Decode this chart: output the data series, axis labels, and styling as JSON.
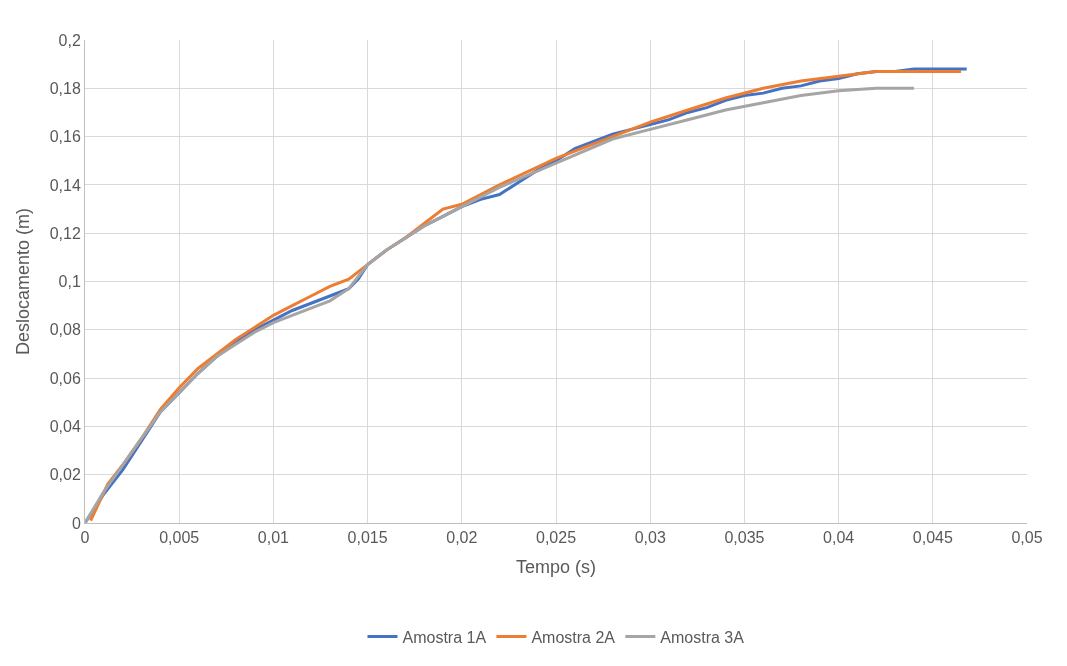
{
  "chart_data": {
    "type": "line",
    "xlabel": "Tempo (s)",
    "ylabel": "Deslocamento (m)",
    "xlim": [
      0,
      0.05
    ],
    "xticks": [
      {
        "value": 0,
        "label": "0"
      },
      {
        "value": 0.005,
        "label": "0,005"
      },
      {
        "value": 0.01,
        "label": "0,01"
      },
      {
        "value": 0.015,
        "label": "0,015"
      },
      {
        "value": 0.02,
        "label": "0,02"
      },
      {
        "value": 0.025,
        "label": "0,025"
      },
      {
        "value": 0.03,
        "label": "0,03"
      },
      {
        "value": 0.035,
        "label": "0,035"
      },
      {
        "value": 0.04,
        "label": "0,04"
      },
      {
        "value": 0.045,
        "label": "0,045"
      },
      {
        "value": 0.05,
        "label": "0,05"
      }
    ],
    "ylim": [
      0,
      0.2
    ],
    "yticks": [
      {
        "value": 0,
        "label": "0"
      },
      {
        "value": 0.02,
        "label": "0,02"
      },
      {
        "value": 0.04,
        "label": "0,04"
      },
      {
        "value": 0.06,
        "label": "0,06"
      },
      {
        "value": 0.08,
        "label": "0,08"
      },
      {
        "value": 0.1,
        "label": "0,1"
      },
      {
        "value": 0.12,
        "label": "0,12"
      },
      {
        "value": 0.14,
        "label": "0,14"
      },
      {
        "value": 0.16,
        "label": "0,16"
      },
      {
        "value": 0.18,
        "label": "0,18"
      },
      {
        "value": 0.2,
        "label": "0,2"
      }
    ],
    "grid": true,
    "legend": "bottom",
    "marker": "none",
    "line_style": "solid",
    "series": [
      {
        "name": "Amostra 1A",
        "color": "#4472c4",
        "x": [
          0,
          0.001,
          0.002,
          0.003,
          0.004,
          0.005,
          0.006,
          0.007,
          0.008,
          0.009,
          0.01,
          0.011,
          0.012,
          0.013,
          0.014,
          0.0145,
          0.015,
          0.016,
          0.017,
          0.018,
          0.019,
          0.02,
          0.021,
          0.022,
          0.023,
          0.024,
          0.025,
          0.026,
          0.027,
          0.028,
          0.029,
          0.03,
          0.031,
          0.032,
          0.033,
          0.034,
          0.035,
          0.036,
          0.037,
          0.038,
          0.039,
          0.04,
          0.041,
          0.042,
          0.043,
          0.044,
          0.045,
          0.0468
        ],
        "values": [
          0,
          0.012,
          0.022,
          0.034,
          0.046,
          0.054,
          0.062,
          0.069,
          0.075,
          0.08,
          0.084,
          0.088,
          0.091,
          0.094,
          0.097,
          0.101,
          0.107,
          0.113,
          0.118,
          0.123,
          0.127,
          0.131,
          0.134,
          0.136,
          0.141,
          0.146,
          0.15,
          0.155,
          0.158,
          0.161,
          0.163,
          0.165,
          0.167,
          0.17,
          0.172,
          0.175,
          0.177,
          0.178,
          0.18,
          0.181,
          0.183,
          0.184,
          0.186,
          0.187,
          0.187,
          0.188,
          0.188,
          0.188
        ]
      },
      {
        "name": "Amostra 2A",
        "color": "#ed7d31",
        "x": [
          0.0003,
          0.0012,
          0.002,
          0.003,
          0.004,
          0.005,
          0.006,
          0.007,
          0.008,
          0.009,
          0.01,
          0.011,
          0.012,
          0.013,
          0.014,
          0.015,
          0.016,
          0.017,
          0.018,
          0.019,
          0.02,
          0.022,
          0.025,
          0.028,
          0.03,
          0.032,
          0.034,
          0.036,
          0.038,
          0.04,
          0.042,
          0.0465
        ],
        "values": [
          0.001,
          0.016,
          0.024,
          0.035,
          0.047,
          0.056,
          0.064,
          0.07,
          0.076,
          0.081,
          0.086,
          0.09,
          0.094,
          0.098,
          0.101,
          0.107,
          0.113,
          0.118,
          0.124,
          0.13,
          0.132,
          0.14,
          0.151,
          0.16,
          0.166,
          0.171,
          0.176,
          0.18,
          0.183,
          0.185,
          0.187,
          0.187
        ]
      },
      {
        "name": "Amostra 3A",
        "color": "#a5a5a5",
        "x": [
          0,
          0.001,
          0.002,
          0.003,
          0.004,
          0.005,
          0.006,
          0.007,
          0.008,
          0.009,
          0.01,
          0.011,
          0.012,
          0.013,
          0.014,
          0.015,
          0.016,
          0.017,
          0.018,
          0.019,
          0.02,
          0.022,
          0.025,
          0.028,
          0.03,
          0.032,
          0.034,
          0.036,
          0.038,
          0.04,
          0.042,
          0.044
        ],
        "values": [
          0,
          0.013,
          0.024,
          0.035,
          0.046,
          0.054,
          0.062,
          0.069,
          0.074,
          0.079,
          0.083,
          0.086,
          0.089,
          0.092,
          0.097,
          0.107,
          0.113,
          0.118,
          0.123,
          0.127,
          0.131,
          0.139,
          0.149,
          0.159,
          0.163,
          0.167,
          0.171,
          0.174,
          0.177,
          0.179,
          0.18,
          0.18
        ]
      }
    ]
  }
}
